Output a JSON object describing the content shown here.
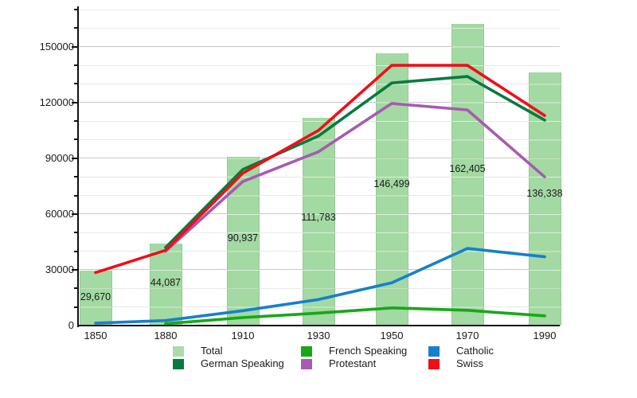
{
  "chart_data": {
    "type": "bar+line",
    "title": "",
    "xlabel": "",
    "ylabel": "",
    "categories": [
      "1850",
      "1880",
      "1910",
      "1930",
      "1950",
      "1970",
      "1990"
    ],
    "bars": {
      "name": "Total",
      "color": "#a3d9a3",
      "values": [
        29670,
        44087,
        90937,
        111783,
        146499,
        162405,
        136338
      ],
      "labels": [
        "29,670",
        "44,087",
        "90,937",
        "111,783",
        "146,499",
        "162,405",
        "136,338"
      ]
    },
    "series": [
      {
        "name": "French Speaking",
        "color": "#17a817",
        "values": [
          null,
          1000,
          4300,
          6700,
          9500,
          8200,
          5200
        ]
      },
      {
        "name": "Catholic",
        "color": "#1580cc",
        "values": [
          1300,
          2700,
          8000,
          14000,
          23000,
          41500,
          37000
        ]
      },
      {
        "name": "Protestant",
        "color": "#a85ab0",
        "values": [
          null,
          40000,
          77500,
          93500,
          119500,
          116000,
          80000
        ]
      },
      {
        "name": "German Speaking",
        "color": "#087a40",
        "values": [
          null,
          42000,
          84000,
          102000,
          130500,
          134000,
          110500
        ]
      },
      {
        "name": "Swiss",
        "color": "#f20d17",
        "values": [
          28500,
          40500,
          82000,
          105000,
          140000,
          140000,
          113000
        ]
      }
    ],
    "y_axis": {
      "min": 0,
      "max": 170000,
      "minor_step": 10000,
      "major_step": 30000,
      "tick_labels": [
        "0",
        "30000",
        "60000",
        "90000",
        "120000",
        "150000"
      ]
    },
    "grid": "horizontal",
    "legend_position": "bottom",
    "legend": [
      {
        "label": "Total",
        "color": "#a8dca8"
      },
      {
        "label": "French Speaking",
        "color": "#17a817"
      },
      {
        "label": "Catholic",
        "color": "#1580cc"
      },
      {
        "label": "German Speaking",
        "color": "#087a40"
      },
      {
        "label": "Protestant",
        "color": "#a85ab0"
      },
      {
        "label": "Swiss",
        "color": "#f20d17"
      }
    ]
  }
}
